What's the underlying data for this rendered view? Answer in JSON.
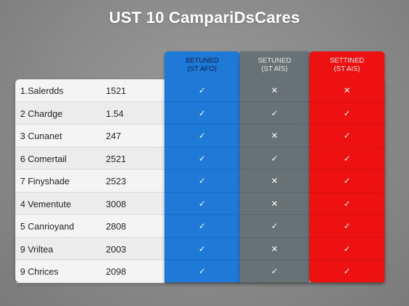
{
  "title": "UST 10 CampariDsCares",
  "columns": [
    {
      "label_line1": "BETUNED",
      "label_line2": "(ST AFO)"
    },
    {
      "label_line1": "SETUNED",
      "label_line2": "(ST AÏS)"
    },
    {
      "label_line1": "SETTINED",
      "label_line2": "(ST AIS)"
    }
  ],
  "rows": [
    {
      "name": "1.Salerdds",
      "value": "1521",
      "marks": [
        "✓",
        "✕",
        "✕"
      ]
    },
    {
      "name": "2 Chardge",
      "value": "1.54",
      "marks": [
        "✓",
        "✓",
        "✓"
      ]
    },
    {
      "name": "3 Cunanet",
      "value": "247",
      "marks": [
        "✓",
        "✕",
        "✓"
      ]
    },
    {
      "name": "6 Comertail",
      "value": "2521",
      "marks": [
        "✓",
        "✓",
        "✓"
      ]
    },
    {
      "name": "7 Finyshade",
      "value": "2523",
      "marks": [
        "✓",
        "✕",
        "✓"
      ]
    },
    {
      "name": "4 Vementute",
      "value": "3008",
      "marks": [
        "✓",
        "✕",
        "✓"
      ]
    },
    {
      "name": "5 Canrioyand",
      "value": "2808",
      "marks": [
        "✓",
        "✓",
        "✓"
      ]
    },
    {
      "name": "9 Vriltea",
      "value": "2003",
      "marks": [
        "✓",
        "✕",
        "✓"
      ]
    },
    {
      "name": "9 Chrices",
      "value": "2098",
      "marks": [
        "✓",
        "✓",
        "✓"
      ]
    }
  ],
  "colors": {
    "blue": "#1e7ad6",
    "gray": "#687174",
    "red": "#ee1111"
  }
}
